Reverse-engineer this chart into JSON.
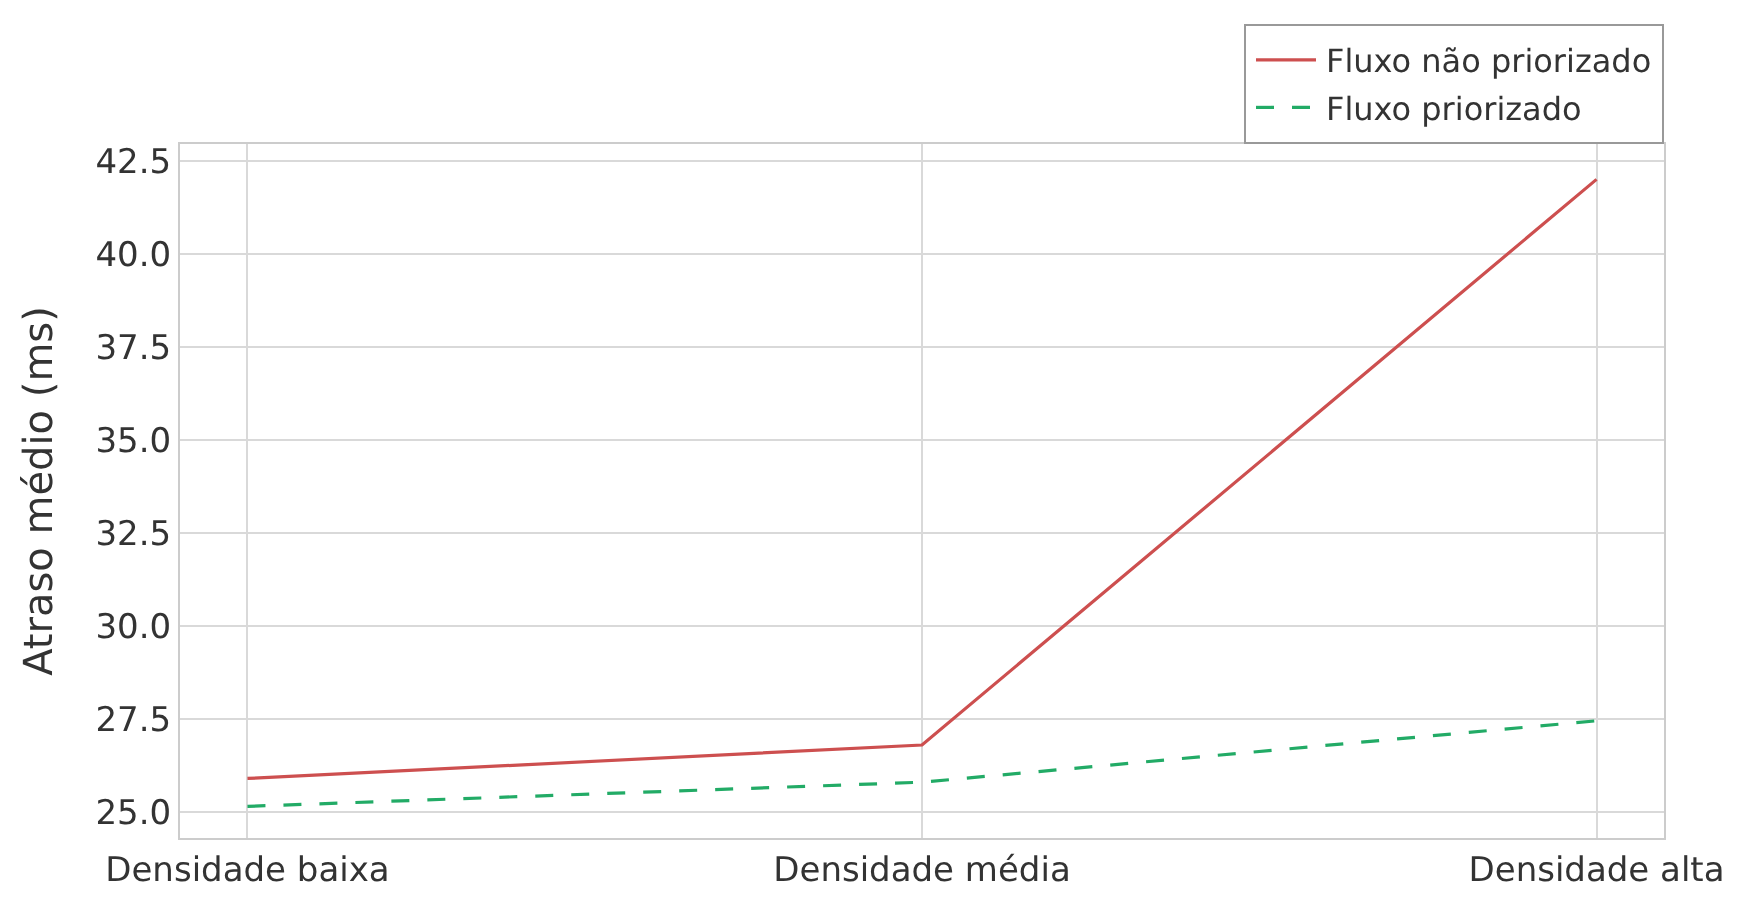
{
  "chart_data": {
    "type": "line",
    "ylabel": "Atraso médio (ms)",
    "categories": [
      "Densidade baixa",
      "Densidade média",
      "Densidade alta"
    ],
    "series": [
      {
        "name": "Fluxo não priorizado",
        "color": "#cd4f4f",
        "values": [
          25.9,
          26.8,
          42.0
        ],
        "line_style": "solid"
      },
      {
        "name": "Fluxo priorizado",
        "color": "#22ab66",
        "values": [
          25.15,
          25.8,
          27.45
        ],
        "line_style": "dashed"
      }
    ],
    "ylim": [
      24.3,
      42.95
    ],
    "yticks": [
      {
        "value": 25,
        "label": "25.0"
      },
      27.5,
      {
        "value": 30,
        "label": "30.0"
      },
      32.5,
      {
        "value": 35,
        "label": "35.0"
      },
      37.5,
      {
        "value": 40,
        "label": "40.0"
      },
      42.5
    ],
    "grid": true,
    "legend": "top right",
    "marker": "none"
  }
}
